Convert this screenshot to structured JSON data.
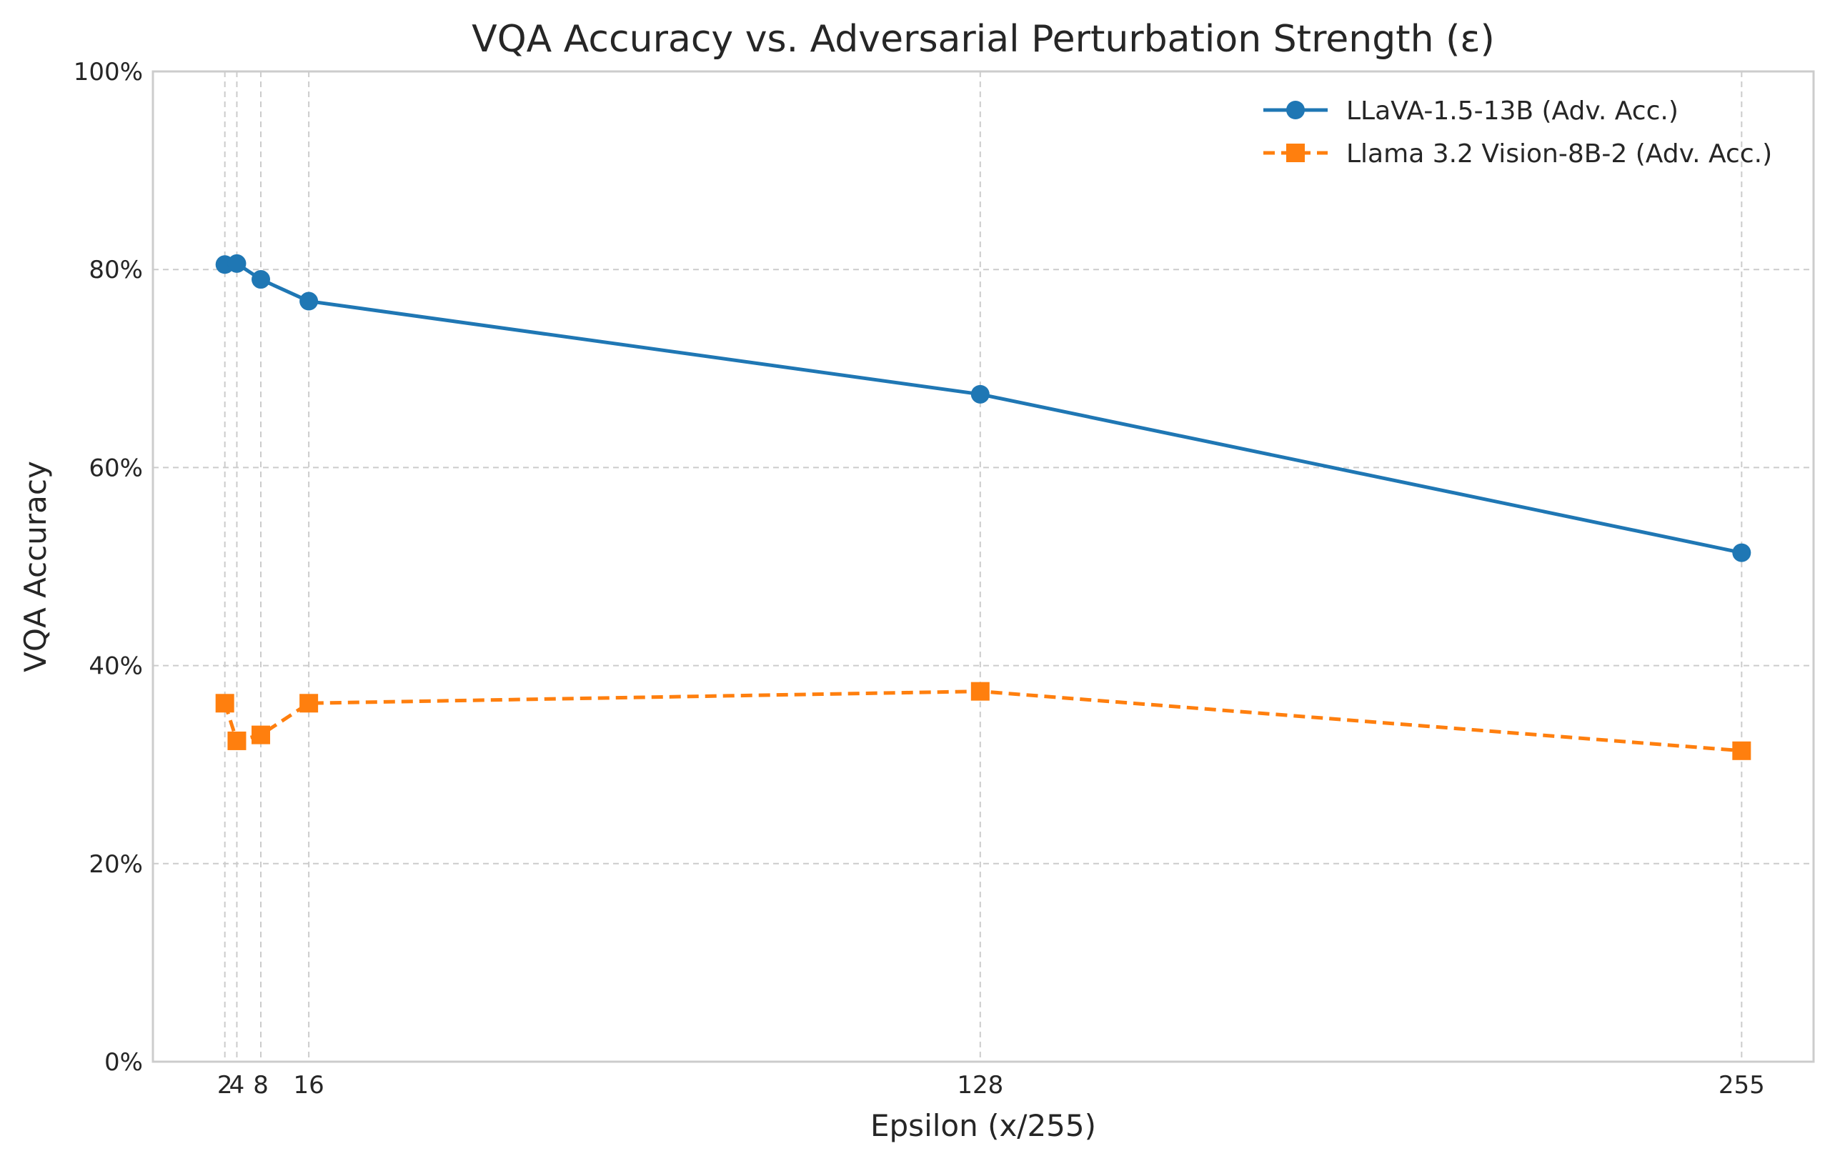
{
  "chart_data": {
    "type": "line",
    "title": "VQA Accuracy vs. Adversarial Perturbation Strength (ε)",
    "xlabel": "Epsilon (x/255)",
    "ylabel": "VQA Accuracy",
    "x": [
      2,
      4,
      8,
      16,
      128,
      255
    ],
    "x_tick_labels": [
      "2",
      "4",
      "8",
      "16",
      "128",
      "255"
    ],
    "y_ticks": [
      0,
      20,
      40,
      60,
      80,
      100
    ],
    "y_tick_labels": [
      "0%",
      "20%",
      "40%",
      "60%",
      "80%",
      "100%"
    ],
    "xlim": [
      -10,
      267
    ],
    "ylim": [
      0,
      100
    ],
    "grid": true,
    "legend_position": "top-right",
    "series": [
      {
        "name": "LLaVA-1.5-13B (Adv. Acc.)",
        "values": [
          80.5,
          80.6,
          79.0,
          76.8,
          67.4,
          51.4
        ],
        "color": "#1f77b4",
        "marker": "circle",
        "line_style": "solid"
      },
      {
        "name": "Llama 3.2 Vision-8B-2 (Adv. Acc.)",
        "values": [
          36.2,
          32.4,
          33.0,
          36.2,
          37.4,
          31.4
        ],
        "color": "#ff7f0e",
        "marker": "square",
        "line_style": "dashed"
      }
    ]
  }
}
